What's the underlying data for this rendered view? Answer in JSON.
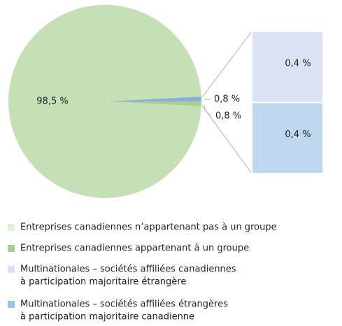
{
  "chart_data": {
    "type": "pie-of-bar",
    "pie": {
      "values": [
        0.8,
        0.8,
        98.5
      ],
      "value_labels": [
        "0,8 %",
        "0,8 %",
        "98,5 %"
      ],
      "colors": [
        "#8faadc",
        "#a9d18e",
        "#c5e0b4"
      ]
    },
    "bar": {
      "values": [
        0.4,
        0.4
      ],
      "value_labels": [
        "0,4 %",
        "0,4 %"
      ],
      "colors": [
        "#dae3f3",
        "#bdd7ee"
      ]
    },
    "legend": [
      {
        "lines": [
          "Entreprises canadiennes n’appartenant pas à un groupe"
        ],
        "color": "#e2f0d9"
      },
      {
        "lines": [
          "Entreprises canadiennes appartenant à un groupe"
        ],
        "color": "#a9d18e"
      },
      {
        "lines": [
          "Multinationales – sociétés affiliées canadiennes",
          "à participation majoritaire étrangère"
        ],
        "color": "#dae3f3"
      },
      {
        "lines": [
          "Multinationales – sociétés affiliées étrangères",
          "à participation majoritaire canadienne"
        ],
        "color": "#9dc3e6"
      }
    ]
  }
}
